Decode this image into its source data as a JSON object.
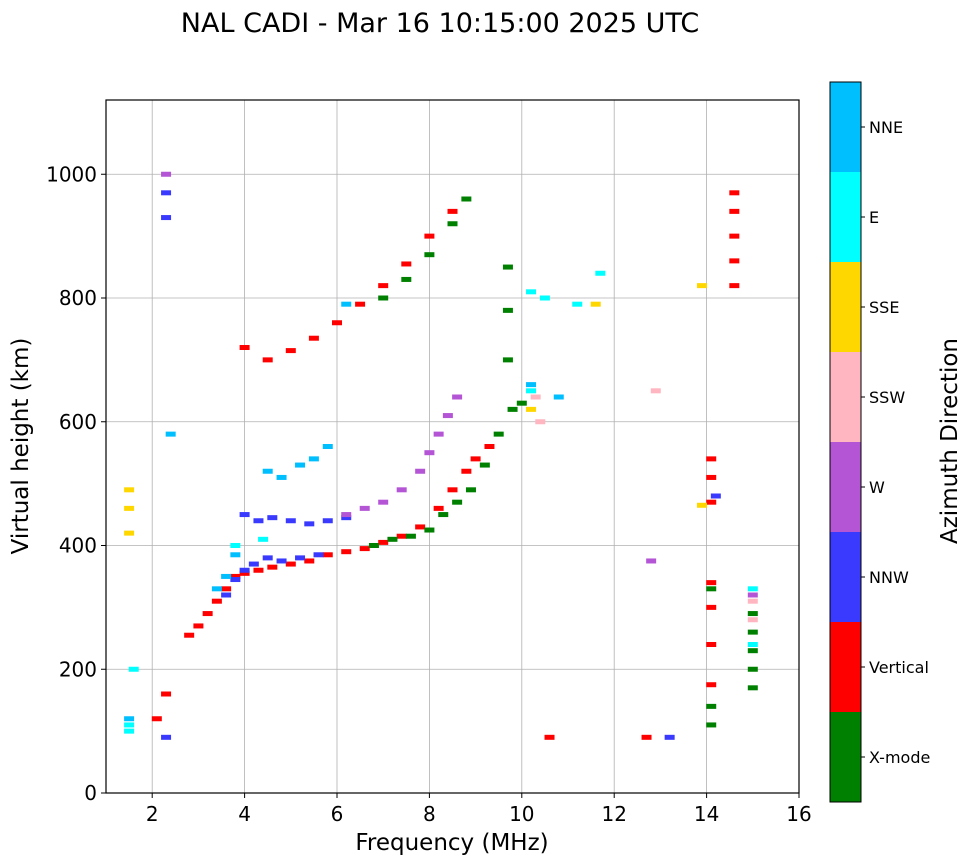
{
  "chart_data": {
    "type": "scatter",
    "title": "NAL CADI - Mar 16 10:15:00 2025 UTC",
    "xlabel": "Frequency (MHz)",
    "ylabel": "Virtual height (km)",
    "xlim": [
      1,
      16
    ],
    "ylim": [
      0,
      1120
    ],
    "xticks": [
      2,
      4,
      6,
      8,
      10,
      12,
      14,
      16
    ],
    "yticks": [
      0,
      200,
      400,
      600,
      800,
      1000
    ],
    "grid": true,
    "colorbar": {
      "label": "Azimuth Direction",
      "categories": [
        {
          "name": "X-mode",
          "color": "#008000"
        },
        {
          "name": "Vertical",
          "color": "#ff0000"
        },
        {
          "name": "NNW",
          "color": "#3a3aff"
        },
        {
          "name": "W",
          "color": "#b455d6"
        },
        {
          "name": "SSW",
          "color": "#ffb6c1"
        },
        {
          "name": "SSE",
          "color": "#ffd700"
        },
        {
          "name": "E",
          "color": "#00ffff"
        },
        {
          "name": "NNE",
          "color": "#00bfff"
        }
      ]
    },
    "series": [
      {
        "name": "Vertical",
        "points": [
          [
            2.8,
            255
          ],
          [
            3.0,
            270
          ],
          [
            3.2,
            290
          ],
          [
            3.4,
            310
          ],
          [
            3.6,
            330
          ],
          [
            3.8,
            350
          ],
          [
            4.0,
            355
          ],
          [
            4.3,
            360
          ],
          [
            4.6,
            365
          ],
          [
            5.0,
            370
          ],
          [
            5.4,
            375
          ],
          [
            5.8,
            385
          ],
          [
            6.2,
            390
          ],
          [
            6.6,
            395
          ],
          [
            7.0,
            405
          ],
          [
            7.4,
            415
          ],
          [
            7.8,
            430
          ],
          [
            8.2,
            460
          ],
          [
            8.5,
            490
          ],
          [
            8.8,
            520
          ],
          [
            9.0,
            540
          ],
          [
            9.3,
            560
          ],
          [
            4.0,
            720
          ],
          [
            4.5,
            700
          ],
          [
            5.0,
            715
          ],
          [
            5.5,
            735
          ],
          [
            6.0,
            760
          ],
          [
            6.5,
            790
          ],
          [
            7.0,
            820
          ],
          [
            7.5,
            855
          ],
          [
            8.0,
            900
          ],
          [
            8.5,
            940
          ],
          [
            14.6,
            970
          ],
          [
            14.6,
            940
          ],
          [
            14.6,
            900
          ],
          [
            14.6,
            860
          ],
          [
            14.6,
            820
          ],
          [
            14.1,
            540
          ],
          [
            14.1,
            510
          ],
          [
            14.1,
            470
          ],
          [
            14.1,
            340
          ],
          [
            14.1,
            300
          ],
          [
            14.1,
            240
          ],
          [
            14.1,
            175
          ],
          [
            12.7,
            90
          ],
          [
            10.6,
            90
          ],
          [
            2.3,
            160
          ],
          [
            2.1,
            120
          ]
        ]
      },
      {
        "name": "X-mode",
        "points": [
          [
            6.8,
            400
          ],
          [
            7.2,
            410
          ],
          [
            7.6,
            415
          ],
          [
            8.0,
            425
          ],
          [
            8.3,
            450
          ],
          [
            8.6,
            470
          ],
          [
            8.9,
            490
          ],
          [
            9.2,
            530
          ],
          [
            9.5,
            580
          ],
          [
            9.8,
            620
          ],
          [
            10.0,
            630
          ],
          [
            9.7,
            700
          ],
          [
            9.7,
            780
          ],
          [
            9.7,
            850
          ],
          [
            7.0,
            800
          ],
          [
            7.5,
            830
          ],
          [
            8.0,
            870
          ],
          [
            8.5,
            920
          ],
          [
            8.8,
            960
          ],
          [
            14.1,
            110
          ],
          [
            14.1,
            140
          ],
          [
            14.1,
            330
          ],
          [
            15.0,
            170
          ],
          [
            15.0,
            200
          ],
          [
            15.0,
            230
          ],
          [
            15.0,
            260
          ],
          [
            15.0,
            290
          ]
        ]
      },
      {
        "name": "NNW",
        "points": [
          [
            2.3,
            90
          ],
          [
            2.3,
            930
          ],
          [
            2.3,
            970
          ],
          [
            3.6,
            320
          ],
          [
            3.8,
            345
          ],
          [
            4.0,
            360
          ],
          [
            4.2,
            370
          ],
          [
            4.5,
            380
          ],
          [
            4.8,
            375
          ],
          [
            5.2,
            380
          ],
          [
            5.6,
            385
          ],
          [
            4.0,
            450
          ],
          [
            4.3,
            440
          ],
          [
            4.6,
            445
          ],
          [
            5.0,
            440
          ],
          [
            5.4,
            435
          ],
          [
            5.8,
            440
          ],
          [
            6.2,
            445
          ],
          [
            13.2,
            90
          ],
          [
            14.2,
            480
          ]
        ]
      },
      {
        "name": "W",
        "points": [
          [
            2.3,
            1000
          ],
          [
            6.2,
            450
          ],
          [
            6.6,
            460
          ],
          [
            7.0,
            470
          ],
          [
            7.4,
            490
          ],
          [
            7.8,
            520
          ],
          [
            8.0,
            550
          ],
          [
            8.2,
            580
          ],
          [
            8.4,
            610
          ],
          [
            8.6,
            640
          ],
          [
            12.8,
            375
          ],
          [
            15.0,
            320
          ]
        ]
      },
      {
        "name": "SSW",
        "points": [
          [
            12.9,
            650
          ],
          [
            15.0,
            310
          ],
          [
            15.0,
            280
          ],
          [
            10.3,
            640
          ],
          [
            10.4,
            600
          ]
        ]
      },
      {
        "name": "SSE",
        "points": [
          [
            1.5,
            490
          ],
          [
            1.5,
            460
          ],
          [
            1.5,
            420
          ],
          [
            13.9,
            820
          ],
          [
            13.9,
            465
          ],
          [
            11.6,
            790
          ],
          [
            10.2,
            620
          ]
        ]
      },
      {
        "name": "E",
        "points": [
          [
            1.5,
            110
          ],
          [
            1.5,
            100
          ],
          [
            1.6,
            200
          ],
          [
            10.2,
            810
          ],
          [
            10.5,
            800
          ],
          [
            11.2,
            790
          ],
          [
            11.7,
            840
          ],
          [
            10.2,
            650
          ],
          [
            15.0,
            330
          ],
          [
            15.0,
            240
          ],
          [
            3.8,
            400
          ],
          [
            4.4,
            410
          ]
        ]
      },
      {
        "name": "NNE",
        "points": [
          [
            1.5,
            120
          ],
          [
            2.4,
            580
          ],
          [
            3.4,
            330
          ],
          [
            3.6,
            350
          ],
          [
            3.8,
            385
          ],
          [
            4.5,
            520
          ],
          [
            4.8,
            510
          ],
          [
            5.2,
            530
          ],
          [
            5.5,
            540
          ],
          [
            5.8,
            560
          ],
          [
            6.2,
            790
          ],
          [
            10.2,
            660
          ],
          [
            10.8,
            640
          ]
        ]
      }
    ]
  }
}
